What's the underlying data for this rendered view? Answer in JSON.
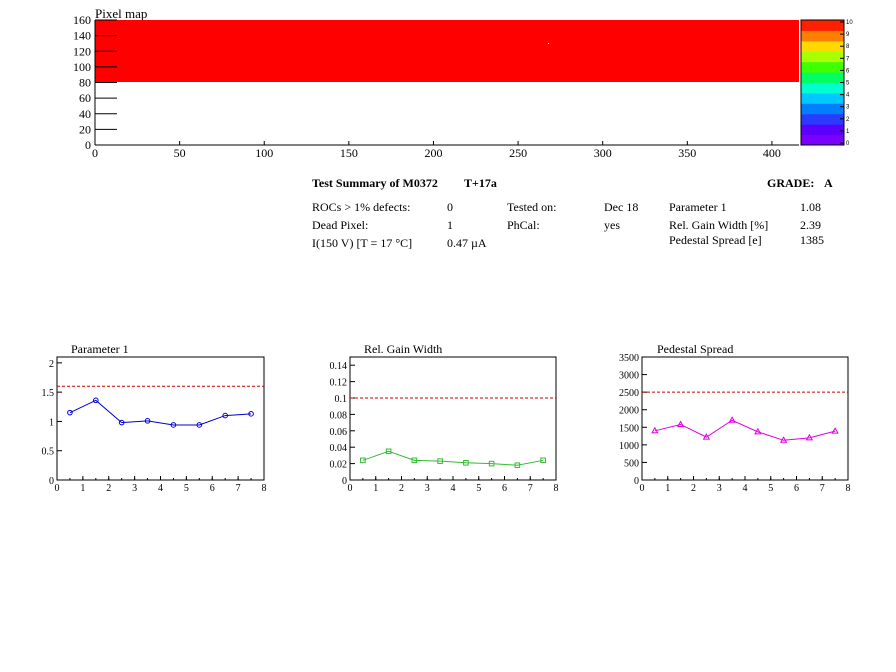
{
  "pixel_map": {
    "title": "Pixel map",
    "x_ticks": [
      "0",
      "50",
      "100",
      "150",
      "200",
      "250",
      "300",
      "350",
      "400"
    ],
    "y_ticks": [
      "0",
      "20",
      "40",
      "60",
      "80",
      "100",
      "120",
      "140",
      "160"
    ],
    "palette_labels": [
      "0",
      "1",
      "2",
      "3",
      "4",
      "5",
      "6",
      "7",
      "8",
      "9",
      "10"
    ],
    "palette_colors": [
      "#7a00ff",
      "#5b00ff",
      "#2a3bff",
      "#0080ff",
      "#00c8ff",
      "#00ffd0",
      "#00ff60",
      "#40ff00",
      "#a8ff00",
      "#ffd800",
      "#ff8000",
      "#ff2000"
    ],
    "fill_color": "#ff0000"
  },
  "summary": {
    "title": "Test Summary of M0372",
    "temp": "T+17a",
    "grade_label": "GRADE:",
    "grade": "A",
    "rows": [
      {
        "label": "ROCs > 1% defects:",
        "value": "0",
        "label2": "Tested on:",
        "value2": "Dec 18",
        "label3": "Parameter 1",
        "value3": "1.08"
      },
      {
        "label": "Dead Pixel:",
        "value": "1",
        "label2": "PhCal:",
        "value2": "yes",
        "label3": "Rel. Gain Width [%]",
        "value3": "2.39"
      },
      {
        "label": "I(150 V) [T = 17 °C]",
        "value": "0.47 µA",
        "label2": "",
        "value2": "",
        "label3": "Pedestal Spread [e]",
        "value3": "1385"
      }
    ]
  },
  "chart_data": [
    {
      "type": "heatmap",
      "title": "Pixel map",
      "xlim": [
        0,
        416
      ],
      "ylim": [
        0,
        160
      ],
      "zlim": [
        0,
        10
      ],
      "filled_region": {
        "x": [
          0,
          416
        ],
        "y": [
          80,
          160
        ],
        "z": 10
      },
      "legend": "right"
    },
    {
      "type": "line",
      "title": "Parameter 1",
      "xlim": [
        0,
        8
      ],
      "ylim": [
        0,
        2.1
      ],
      "x_ticks": [
        "0",
        "1",
        "2",
        "3",
        "4",
        "5",
        "6",
        "7",
        "8"
      ],
      "y_ticks": [
        "0",
        "0.5",
        "1",
        "1.5",
        "2"
      ],
      "y_tick_values": [
        0,
        0.5,
        1,
        1.5,
        2
      ],
      "x": [
        0.5,
        1.5,
        2.5,
        3.5,
        4.5,
        5.5,
        6.5,
        7.5
      ],
      "values": [
        1.15,
        1.36,
        0.98,
        1.01,
        0.94,
        0.94,
        1.1,
        1.13
      ],
      "threshold": 1.6,
      "marker": "circle",
      "color": "#0000cc"
    },
    {
      "type": "line",
      "title": "Rel. Gain Width",
      "xlim": [
        0,
        8
      ],
      "ylim": [
        0,
        0.15
      ],
      "x_ticks": [
        "0",
        "1",
        "2",
        "3",
        "4",
        "5",
        "6",
        "7",
        "8"
      ],
      "y_ticks": [
        "0",
        "0.02",
        "0.04",
        "0.06",
        "0.08",
        "0.1",
        "0.12",
        "0.14"
      ],
      "y_tick_values": [
        0,
        0.02,
        0.04,
        0.06,
        0.08,
        0.1,
        0.12,
        0.14
      ],
      "x": [
        0.5,
        1.5,
        2.5,
        3.5,
        4.5,
        5.5,
        6.5,
        7.5
      ],
      "values": [
        0.024,
        0.035,
        0.024,
        0.023,
        0.021,
        0.02,
        0.018,
        0.024
      ],
      "threshold": 0.1,
      "marker": "square",
      "color": "#33bb33"
    },
    {
      "type": "line",
      "title": "Pedestal Spread",
      "xlim": [
        0,
        8
      ],
      "ylim": [
        0,
        3500
      ],
      "x_ticks": [
        "0",
        "1",
        "2",
        "3",
        "4",
        "5",
        "6",
        "7",
        "8"
      ],
      "y_ticks": [
        "0",
        "500",
        "1000",
        "1500",
        "2000",
        "2500",
        "3000",
        "3500"
      ],
      "y_tick_values": [
        0,
        500,
        1000,
        1500,
        2000,
        2500,
        3000,
        3500
      ],
      "x": [
        0.5,
        1.5,
        2.5,
        3.5,
        4.5,
        5.5,
        6.5,
        7.5
      ],
      "values": [
        1400,
        1580,
        1220,
        1700,
        1370,
        1130,
        1200,
        1390
      ],
      "threshold": 2500,
      "marker": "triangle",
      "color": "#dd00dd"
    }
  ]
}
